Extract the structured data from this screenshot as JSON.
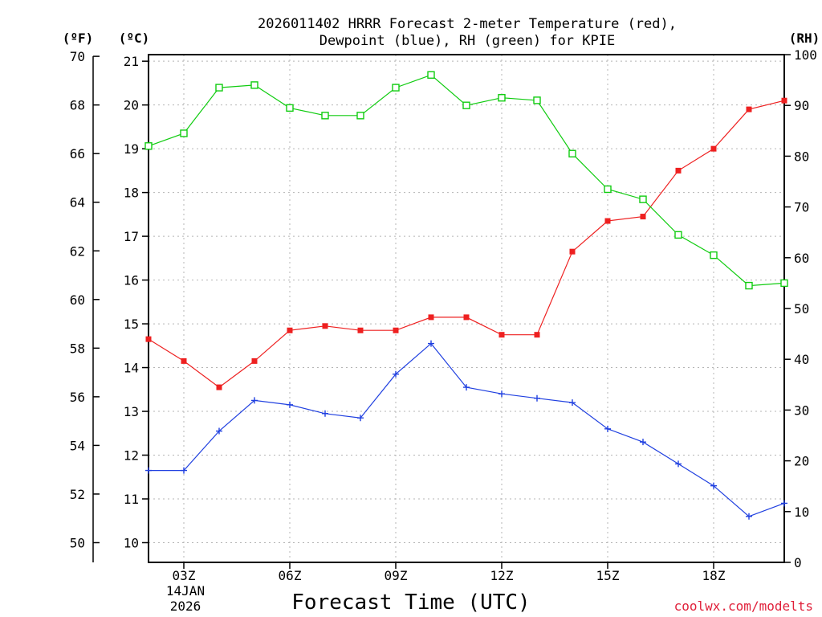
{
  "chart_data": {
    "type": "line",
    "title_line1": "2026011402 HRRR Forecast 2-meter Temperature (red),",
    "title_line2": "Dewpoint (blue), RH (green) for KPIE",
    "xlabel": "Forecast Time (UTC)",
    "x_hours": [
      2,
      3,
      4,
      5,
      6,
      7,
      8,
      9,
      10,
      11,
      12,
      13,
      14,
      15,
      16,
      17,
      18,
      19,
      20
    ],
    "x_ticks": [
      {
        "hour": 3,
        "label": "03Z"
      },
      {
        "hour": 6,
        "label": "06Z"
      },
      {
        "hour": 9,
        "label": "09Z"
      },
      {
        "hour": 12,
        "label": "12Z"
      },
      {
        "hour": 15,
        "label": "15Z"
      },
      {
        "hour": 18,
        "label": "18Z"
      }
    ],
    "date_label_day": "14JAN",
    "date_label_year": "2026",
    "xlim": [
      2,
      20
    ],
    "celsius_axis": {
      "unit_label": "(ºC)",
      "ylim": [
        9.55,
        21.15
      ],
      "ticks": [
        10,
        11,
        12,
        13,
        14,
        15,
        16,
        17,
        18,
        19,
        20,
        21
      ]
    },
    "fahrenheit_axis": {
      "unit_label": "(ºF)",
      "ticks": [
        50,
        52,
        54,
        56,
        58,
        60,
        62,
        64,
        66,
        68,
        70
      ]
    },
    "rh_axis": {
      "unit_label": "(RH)",
      "ylim": [
        0,
        100
      ],
      "ticks": [
        0,
        10,
        20,
        30,
        40,
        50,
        60,
        70,
        80,
        90,
        100
      ]
    },
    "series": [
      {
        "name": "Temperature",
        "unit": "C",
        "color": "#ee2020",
        "marker": "filled-square",
        "values": [
          14.65,
          14.15,
          13.55,
          14.15,
          14.85,
          14.95,
          14.85,
          14.85,
          15.15,
          15.15,
          14.75,
          14.75,
          16.65,
          17.35,
          17.45,
          18.5,
          19.0,
          19.9,
          20.1
        ]
      },
      {
        "name": "Dewpoint",
        "unit": "C",
        "color": "#2040e0",
        "marker": "plus",
        "values": [
          11.65,
          11.65,
          12.55,
          13.25,
          13.15,
          12.95,
          12.85,
          13.85,
          14.55,
          13.55,
          13.4,
          13.3,
          13.2,
          12.6,
          12.3,
          11.8,
          11.3,
          10.6,
          10.9
        ]
      },
      {
        "name": "RH",
        "unit": "%",
        "color": "#10cc10",
        "marker": "open-square",
        "values": [
          82,
          84.5,
          93.5,
          94,
          89.5,
          88,
          88,
          93.5,
          96,
          90,
          91.5,
          91,
          80.5,
          73.5,
          71.5,
          64.5,
          60.5,
          54.5,
          55
        ]
      }
    ]
  },
  "credit": "coolwx.com/modelts"
}
